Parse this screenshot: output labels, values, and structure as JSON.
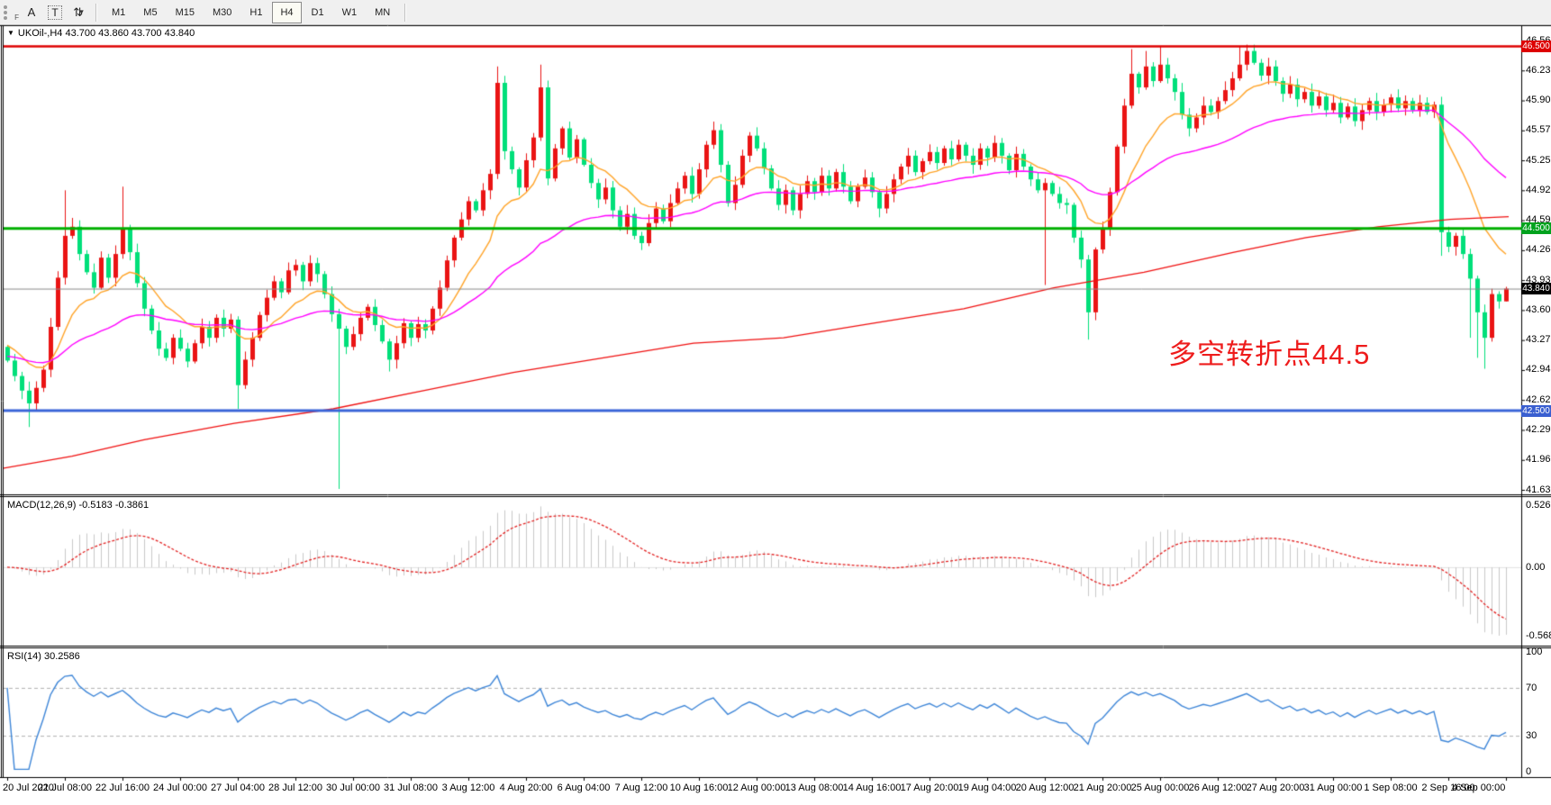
{
  "toolbar": {
    "icons": [
      {
        "name": "toolbar-grip-icon",
        "glyph": "F"
      },
      {
        "name": "label-tool-icon",
        "glyph": "A"
      },
      {
        "name": "text-tool-icon",
        "glyph": "T"
      },
      {
        "name": "arrows-tool-icon",
        "glyph": "⇅"
      },
      {
        "name": "arrows-dropdown-caret",
        "glyph": "▾"
      }
    ],
    "timeframes": [
      "M1",
      "M5",
      "M15",
      "M30",
      "H1",
      "H4",
      "D1",
      "W1",
      "MN"
    ],
    "active_timeframe": "H4"
  },
  "chart_header": {
    "symbol": "UKOil-,H4",
    "open": "43.700",
    "high": "43.860",
    "low": "43.700",
    "close": "43.840",
    "text": "UKOil-,H4  43.700 43.860 43.700 43.840",
    "collapse_icon": "▼"
  },
  "annotation": {
    "text": "多空转折点44.5",
    "color": "#ee1c1c"
  },
  "price_axis": {
    "ticks": [
      "46.565",
      "46.235",
      "45.905",
      "45.575",
      "45.250",
      "44.920",
      "44.590",
      "44.260",
      "43.935",
      "43.605",
      "43.275",
      "42.945",
      "42.620",
      "42.290",
      "41.960",
      "41.630"
    ],
    "tags": [
      {
        "name": "resistance-price-tag",
        "text": "46.500",
        "bg": "#dd0000",
        "price": 46.5
      },
      {
        "name": "pivot-price-tag",
        "text": "44.500",
        "bg": "#00a21e",
        "price": 44.5
      },
      {
        "name": "current-price-tag",
        "text": "43.840",
        "bg": "#000000",
        "price": 43.84
      },
      {
        "name": "support-price-tag",
        "text": "42.500",
        "bg": "#3a5fd0",
        "price": 42.5
      }
    ]
  },
  "macd": {
    "label": "MACD(12,26,9) -0.5183 -0.3861",
    "axis": [
      "0.5268",
      "0.00",
      "-0.5681"
    ]
  },
  "rsi": {
    "label": "RSI(14) 30.2586",
    "axis": [
      "100",
      "70",
      "30",
      "0"
    ],
    "levels": [
      70,
      30
    ]
  },
  "time_axis": {
    "labels": [
      "20 Jul 2020",
      "21 Jul 08:00",
      "22 Jul 16:00",
      "24 Jul 00:00",
      "27 Jul 04:00",
      "28 Jul 12:00",
      "30 Jul 00:00",
      "31 Jul 08:00",
      "3 Aug 12:00",
      "4 Aug 20:00",
      "6 Aug 04:00",
      "7 Aug 12:00",
      "10 Aug 16:00",
      "12 Aug 00:00",
      "13 Aug 08:00",
      "14 Aug 16:00",
      "17 Aug 20:00",
      "19 Aug 04:00",
      "20 Aug 12:00",
      "21 Aug 20:00",
      "25 Aug 00:00",
      "26 Aug 12:00",
      "27 Aug 20:00",
      "31 Aug 00:00",
      "1 Sep 08:00",
      "2 Sep 16:00",
      "4 Sep 00:00"
    ]
  },
  "chart_data": {
    "type": "candlestick",
    "symbol": "UKOil-",
    "timeframe": "H4",
    "note": "Chinese color convention: red = up candle, green = down candle",
    "colors": {
      "up": "#ea1414",
      "down": "#00df7a",
      "ma_fast": "#ffa428",
      "ma_mid": "#ff00ff",
      "ma_slow": "#f01010",
      "macd_hist": "#c9c9c9",
      "macd_signal": "#e32222",
      "rsi_line": "#3e86d8",
      "level_dash": "#b0b0b0",
      "current_line": "#8a8a8a"
    },
    "price_range": {
      "top_tick": 46.565,
      "bottom_tick": 41.63
    },
    "open_seed": 43.2,
    "closes": [
      43.05,
      42.88,
      42.72,
      42.58,
      42.75,
      42.95,
      43.42,
      43.96,
      44.42,
      44.52,
      44.22,
      44.02,
      43.85,
      44.18,
      43.96,
      44.22,
      44.5,
      44.24,
      43.9,
      43.62,
      43.38,
      43.18,
      43.08,
      43.3,
      43.18,
      43.04,
      43.24,
      43.42,
      43.3,
      43.52,
      43.4,
      43.5,
      42.78,
      43.06,
      43.3,
      43.55,
      43.74,
      43.92,
      43.8,
      44.04,
      44.1,
      43.92,
      44.12,
      44.0,
      43.78,
      43.56,
      43.4,
      43.2,
      43.34,
      43.52,
      43.64,
      43.44,
      43.26,
      43.06,
      43.24,
      43.46,
      43.3,
      43.45,
      43.38,
      43.62,
      43.85,
      44.15,
      44.4,
      44.6,
      44.8,
      44.7,
      44.92,
      45.1,
      46.1,
      45.35,
      45.15,
      44.95,
      45.25,
      45.5,
      46.05,
      45.05,
      45.38,
      45.6,
      45.28,
      45.48,
      45.2,
      45.0,
      44.82,
      44.95,
      44.7,
      44.52,
      44.66,
      44.42,
      44.34,
      44.56,
      44.72,
      44.58,
      44.78,
      44.94,
      45.08,
      44.88,
      45.15,
      45.42,
      45.58,
      45.2,
      44.78,
      44.98,
      45.3,
      45.52,
      45.38,
      45.16,
      44.94,
      44.76,
      44.92,
      44.7,
      44.88,
      45.02,
      44.9,
      45.08,
      44.94,
      45.12,
      44.96,
      44.8,
      44.96,
      45.06,
      44.9,
      44.72,
      44.88,
      45.04,
      45.18,
      45.3,
      45.12,
      45.24,
      45.34,
      45.22,
      45.38,
      45.26,
      45.42,
      45.3,
      45.2,
      45.38,
      45.28,
      45.44,
      45.3,
      45.14,
      45.32,
      45.18,
      45.04,
      44.92,
      45.0,
      44.88,
      44.78,
      44.76,
      44.4,
      44.16,
      43.58,
      44.27,
      44.5,
      44.9,
      45.4,
      45.85,
      46.2,
      46.05,
      46.28,
      46.12,
      46.3,
      46.15,
      46.0,
      45.75,
      45.6,
      45.72,
      45.85,
      45.78,
      45.9,
      46.02,
      46.15,
      46.3,
      46.45,
      46.32,
      46.18,
      46.28,
      46.12,
      45.98,
      46.08,
      45.92,
      46.0,
      45.85,
      45.95,
      45.8,
      45.88,
      45.72,
      45.84,
      45.68,
      45.8,
      45.9,
      45.78,
      45.86,
      45.94,
      45.82,
      45.9,
      45.8,
      45.88,
      45.78,
      45.86,
      44.46,
      44.3,
      44.42,
      44.22,
      43.95,
      43.58,
      43.3,
      43.78,
      43.7,
      43.84
    ],
    "wick_overrides": {
      "3": {
        "low": 42.32
      },
      "8": {
        "high": 44.92
      },
      "16": {
        "high": 44.96
      },
      "32": {
        "low": 42.52
      },
      "46": {
        "low": 41.64
      },
      "53": {
        "low": 42.93
      },
      "68": {
        "high": 46.28
      },
      "74": {
        "high": 46.3
      },
      "144": {
        "low": 43.88
      },
      "150": {
        "low": 43.28
      },
      "156": {
        "high": 46.47
      },
      "158": {
        "high": 46.45
      },
      "160": {
        "high": 46.5
      },
      "171": {
        "high": 46.5
      },
      "172": {
        "high": 46.52
      },
      "199": {
        "low": 44.2
      },
      "203": {
        "low": 43.3
      },
      "204": {
        "low": 43.08
      },
      "205": {
        "low": 42.96
      }
    },
    "last_candle_ohlc": [
      43.7,
      43.86,
      43.7,
      43.84
    ],
    "hlines": [
      {
        "name": "resistance-line",
        "price": 46.5,
        "color": "#de0000",
        "width": 2.5
      },
      {
        "name": "pivot-line",
        "price": 44.5,
        "color": "#00af00",
        "width": 3
      },
      {
        "name": "support-line",
        "price": 42.5,
        "color": "#3a64d8",
        "width": 3
      }
    ],
    "current_price": 43.84,
    "mas": [
      {
        "name": "ma-fast",
        "period": 12,
        "seed": 43.25,
        "color": "#ffa428"
      },
      {
        "name": "ma-mid",
        "period": 40,
        "seed": 43.1,
        "color": "#ff00ff"
      }
    ],
    "ma_slow_path": [
      [
        0,
        41.86
      ],
      [
        80,
        42.0
      ],
      [
        160,
        42.18
      ],
      [
        260,
        42.36
      ],
      [
        370,
        42.52
      ],
      [
        470,
        42.72
      ],
      [
        570,
        42.92
      ],
      [
        670,
        43.08
      ],
      [
        770,
        43.24
      ],
      [
        870,
        43.3
      ],
      [
        970,
        43.46
      ],
      [
        1070,
        43.62
      ],
      [
        1170,
        43.85
      ],
      [
        1270,
        44.02
      ],
      [
        1370,
        44.24
      ],
      [
        1450,
        44.4
      ],
      [
        1530,
        44.52
      ],
      [
        1610,
        44.6
      ],
      [
        1675,
        44.63
      ]
    ],
    "macd_current": [
      -0.5183,
      -0.3861
    ],
    "rsi_current": 30.2586
  }
}
